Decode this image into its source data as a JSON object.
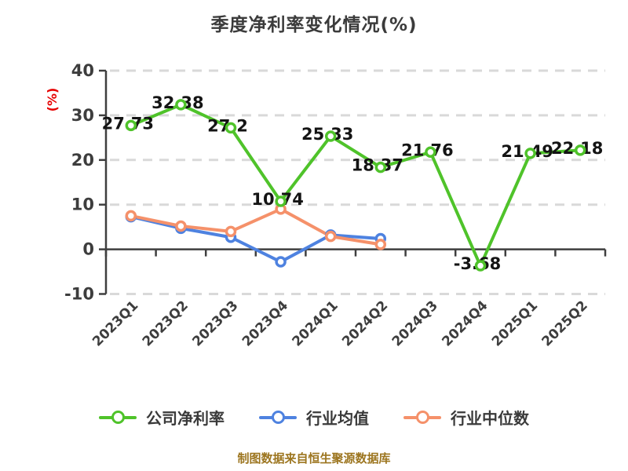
{
  "title": "季度净利率变化情况(%)",
  "footer": "制图数据来自恒生聚源数据库",
  "colors": {
    "company": "#4fc32a",
    "industry_avg": "#4e82e0",
    "industry_median": "#f5916a",
    "grid": "#d9d9d9",
    "axis": "#3f3f3f",
    "tick_label": "#3d3d3d",
    "value_label": "#141414",
    "ylabel_red": "#e60000",
    "title_text": "#3b3b3b",
    "footer_text": "#9c751f"
  },
  "chart_data": {
    "type": "line",
    "title": "季度净利率变化情况(%)",
    "ylabel": "(%)",
    "xlabel": "",
    "ylim": [
      -10,
      40
    ],
    "yticks": [
      40,
      30,
      20,
      10,
      0,
      -10
    ],
    "grid": "horizontal dashed",
    "legend_position": "bottom",
    "categories": [
      "2023Q1",
      "2023Q2",
      "2023Q3",
      "2023Q4",
      "2024Q1",
      "2024Q2",
      "2024Q3",
      "2024Q4",
      "2025Q1",
      "2025Q2"
    ],
    "series": [
      {
        "name": "公司净利率",
        "color_key": "company",
        "show_value_labels": true,
        "values": [
          27.73,
          32.38,
          27.2,
          10.74,
          25.33,
          18.37,
          21.76,
          -3.68,
          21.49,
          22.18
        ]
      },
      {
        "name": "行业均值",
        "color_key": "industry_avg",
        "show_value_labels": false,
        "values": [
          7.3,
          4.7,
          2.7,
          -2.8,
          3.2,
          2.4,
          null,
          null,
          null,
          null
        ]
      },
      {
        "name": "行业中位数",
        "color_key": "industry_median",
        "show_value_labels": false,
        "values": [
          7.5,
          5.2,
          4.0,
          9.0,
          2.9,
          1.1,
          null,
          null,
          null,
          null
        ]
      }
    ]
  }
}
